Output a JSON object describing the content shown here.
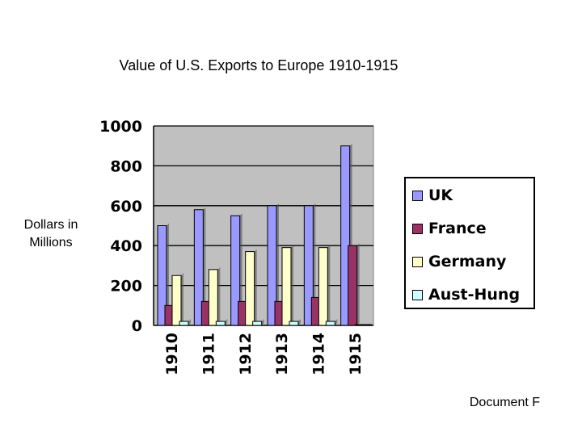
{
  "page": {
    "title": "Value of U.S. Exports to Europe 1910-1915",
    "ylabel_line1": "Dollars in",
    "ylabel_line2": "Millions",
    "footer": "Document F"
  },
  "chart_data": {
    "type": "bar",
    "categories": [
      "1910",
      "1911",
      "1912",
      "1913",
      "1914",
      "1915"
    ],
    "series": [
      {
        "name": "UK",
        "color": "#9999ff",
        "values": [
          500,
          580,
          550,
          600,
          600,
          900
        ]
      },
      {
        "name": "France",
        "color": "#993366",
        "values": [
          100,
          120,
          120,
          120,
          140,
          400
        ]
      },
      {
        "name": "Germany",
        "color": "#ffffcc",
        "values": [
          250,
          280,
          370,
          390,
          390,
          0
        ]
      },
      {
        "name": "Aust-Hung",
        "color": "#ccffff",
        "values": [
          20,
          20,
          20,
          20,
          20,
          0
        ]
      }
    ],
    "yticks": [
      0,
      200,
      400,
      600,
      800,
      1000
    ],
    "ylim": [
      0,
      1000
    ],
    "grid": true,
    "plot_background": "#c0c0c0",
    "legend": "right"
  }
}
